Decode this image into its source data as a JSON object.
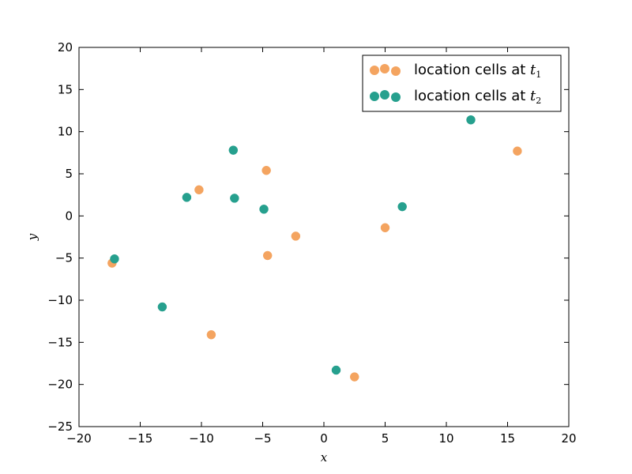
{
  "chart_data": {
    "type": "scatter",
    "xlabel": "x",
    "ylabel": "y",
    "xlim": [
      -20,
      20
    ],
    "ylim": [
      -25,
      20
    ],
    "xticks": [
      -20,
      -15,
      -10,
      -5,
      0,
      5,
      10,
      15,
      20
    ],
    "yticks": [
      -25,
      -20,
      -15,
      -10,
      -5,
      0,
      5,
      10,
      15,
      20
    ],
    "xtick_labels": [
      "−20",
      "−15",
      "−10",
      "−5",
      "0",
      "5",
      "10",
      "15",
      "20"
    ],
    "ytick_labels": [
      "−25",
      "−20",
      "−15",
      "−10",
      "−5",
      "0",
      "5",
      "10",
      "15",
      "20"
    ],
    "legend_position": "top-right",
    "grid": false,
    "series": [
      {
        "name": "location cells at t1",
        "label_text": "location cells at ",
        "label_symbol": "t",
        "label_subscript": "1",
        "color": "#f4a460",
        "points": [
          [
            -17.3,
            -5.6
          ],
          [
            -10.2,
            3.1
          ],
          [
            -9.2,
            -14.1
          ],
          [
            -4.7,
            5.4
          ],
          [
            -4.6,
            -4.7
          ],
          [
            -2.3,
            -2.4
          ],
          [
            5.0,
            -1.4
          ],
          [
            2.5,
            -19.1
          ],
          [
            15.8,
            7.7
          ]
        ]
      },
      {
        "name": "location cells at t2",
        "label_text": "location cells at ",
        "label_symbol": "t",
        "label_subscript": "2",
        "color": "#26a08e",
        "points": [
          [
            -17.1,
            -5.1
          ],
          [
            -13.2,
            -10.8
          ],
          [
            -11.2,
            2.2
          ],
          [
            -7.4,
            7.8
          ],
          [
            -7.3,
            2.1
          ],
          [
            -4.9,
            0.8
          ],
          [
            1.0,
            -18.3
          ],
          [
            6.4,
            1.1
          ],
          [
            12.0,
            11.4
          ]
        ]
      }
    ]
  }
}
